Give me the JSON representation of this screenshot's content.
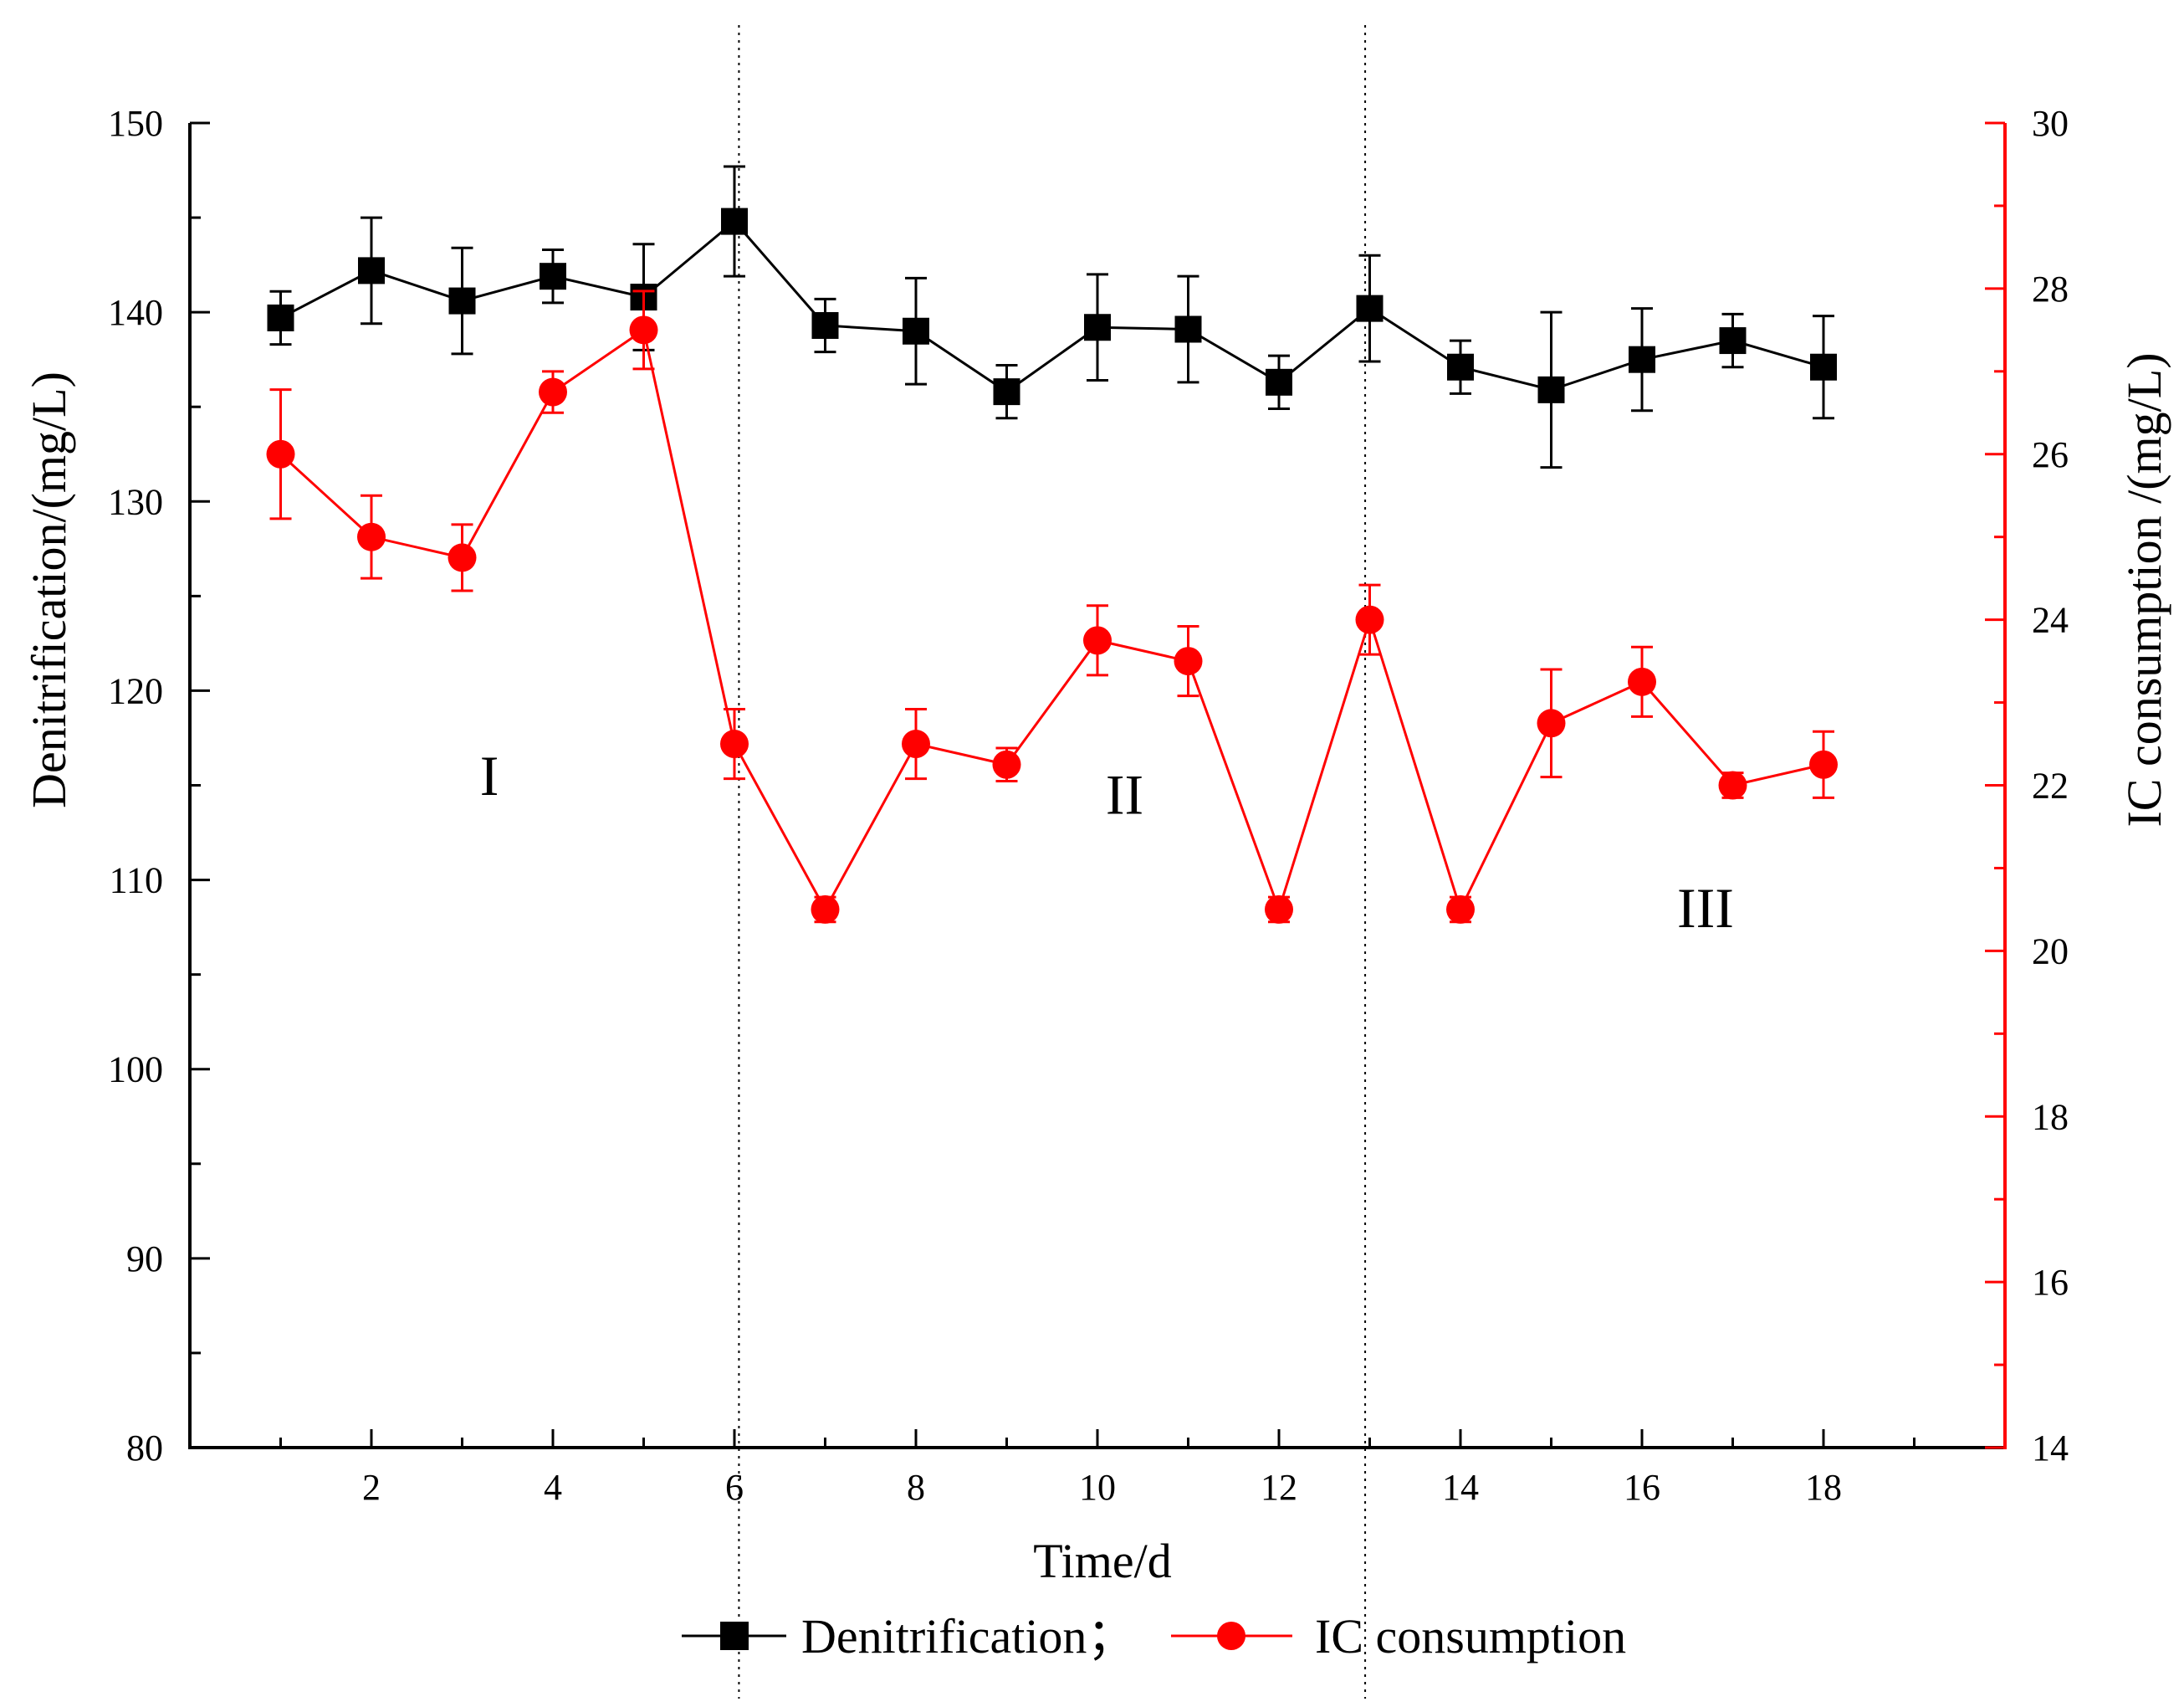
{
  "chart_data": {
    "type": "line",
    "xlabel": "Time/d",
    "ylabel_left": "Denitrification/(mg/L)",
    "ylabel_right": "IC consumption /(mg/L)",
    "xlim": [
      0,
      20
    ],
    "x_ticks": [
      2,
      4,
      6,
      8,
      10,
      12,
      14,
      16,
      18
    ],
    "ylim_left": [
      80,
      150
    ],
    "y_ticks_left": [
      80,
      90,
      100,
      110,
      120,
      130,
      140,
      150
    ],
    "ylim_right": [
      14,
      30
    ],
    "y_ticks_right": [
      14,
      16,
      18,
      20,
      22,
      24,
      26,
      28,
      30
    ],
    "x": [
      1,
      2,
      3,
      4,
      5,
      6,
      7,
      8,
      9,
      10,
      11,
      12,
      13,
      14,
      15,
      16,
      17,
      18
    ],
    "series": [
      {
        "name": "Denitrification；",
        "axis": "left",
        "color": "#000000",
        "marker": "square",
        "values": [
          139.7,
          142.2,
          140.6,
          141.9,
          140.8,
          144.8,
          139.3,
          139.0,
          135.8,
          139.2,
          139.1,
          136.3,
          140.2,
          137.1,
          135.9,
          137.5,
          138.5,
          137.1
        ],
        "errors": [
          1.4,
          2.8,
          2.8,
          1.4,
          2.8,
          2.9,
          1.4,
          2.8,
          1.4,
          2.8,
          2.8,
          1.4,
          2.8,
          1.4,
          4.1,
          2.7,
          1.4,
          2.7
        ]
      },
      {
        "name": "IC consumption",
        "axis": "right",
        "color": "#ff0000",
        "marker": "circle",
        "values": [
          26.0,
          25.0,
          24.75,
          26.75,
          27.5,
          22.5,
          20.5,
          22.5,
          22.25,
          23.75,
          23.5,
          20.5,
          24.0,
          20.5,
          22.75,
          23.25,
          22.0,
          22.25
        ],
        "errors": [
          0.78,
          0.5,
          0.4,
          0.25,
          0.47,
          0.42,
          0.15,
          0.42,
          0.2,
          0.42,
          0.42,
          0.15,
          0.42,
          0.15,
          0.65,
          0.42,
          0.15,
          0.4
        ]
      }
    ],
    "dividers_x": [
      6.05,
      12.95
    ],
    "annotations": [
      {
        "text": "I",
        "x": 3.3,
        "y": 114.5
      },
      {
        "text": "II",
        "x": 10.3,
        "y": 113.5
      },
      {
        "text": "III",
        "x": 16.7,
        "y": 107.5
      }
    ],
    "legend_position": "bottom-center"
  }
}
